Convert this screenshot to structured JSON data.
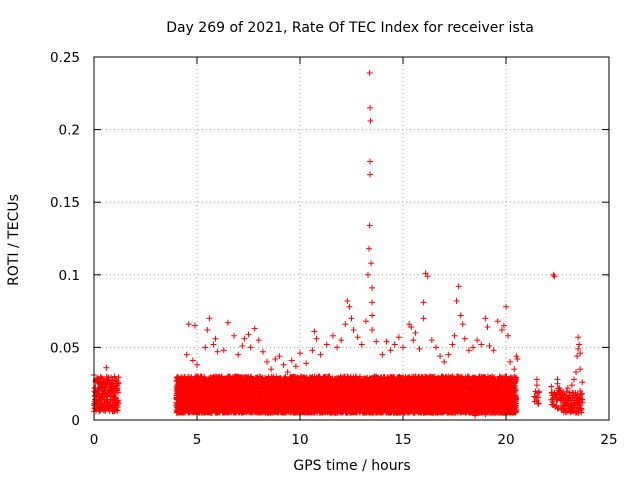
{
  "chart_data": {
    "type": "scatter",
    "title": "Day 269 of 2021, Rate Of TEC Index for receiver ista",
    "xlabel": "GPS time / hours",
    "ylabel": "ROTI / TECUs",
    "xlim": [
      0,
      25
    ],
    "ylim": [
      0,
      0.25
    ],
    "x_ticks": [
      0,
      5,
      10,
      15,
      20,
      25
    ],
    "x_tick_labels": [
      "0",
      "5",
      "10",
      "15",
      "20",
      "25"
    ],
    "y_ticks": [
      0,
      0.05,
      0.1,
      0.15,
      0.2,
      0.25
    ],
    "y_tick_labels": [
      "0",
      "0.05",
      "0.1",
      "0.15",
      "0.2",
      "0.25"
    ],
    "grid": true,
    "marker": "plus",
    "color": "#ff0000",
    "series": [
      {
        "name": "ROTI",
        "points": [
          [
            0.0,
            0.031
          ],
          [
            0.1,
            0.028
          ],
          [
            0.2,
            0.022
          ],
          [
            0.3,
            0.026
          ],
          [
            0.4,
            0.018
          ],
          [
            0.5,
            0.024
          ],
          [
            0.6,
            0.036
          ],
          [
            0.7,
            0.029
          ],
          [
            0.8,
            0.021
          ],
          [
            0.9,
            0.027
          ],
          [
            1.0,
            0.03
          ],
          [
            1.1,
            0.025
          ],
          [
            0.2,
            0.012
          ],
          [
            0.5,
            0.014
          ],
          [
            0.8,
            0.013
          ],
          [
            1.0,
            0.016
          ],
          [
            0.3,
            0.008
          ],
          [
            0.7,
            0.009
          ],
          [
            4.0,
            0.012
          ],
          [
            4.3,
            0.028
          ],
          [
            4.5,
            0.045
          ],
          [
            4.6,
            0.066
          ],
          [
            4.8,
            0.041
          ],
          [
            4.9,
            0.065
          ],
          [
            5.0,
            0.038
          ],
          [
            5.2,
            0.03
          ],
          [
            5.4,
            0.05
          ],
          [
            5.5,
            0.062
          ],
          [
            5.6,
            0.07
          ],
          [
            5.8,
            0.052
          ],
          [
            5.9,
            0.056
          ],
          [
            6.0,
            0.047
          ],
          [
            6.3,
            0.048
          ],
          [
            6.5,
            0.067
          ],
          [
            6.8,
            0.058
          ],
          [
            7.0,
            0.045
          ],
          [
            7.2,
            0.051
          ],
          [
            7.3,
            0.056
          ],
          [
            7.5,
            0.059
          ],
          [
            7.6,
            0.05
          ],
          [
            7.8,
            0.063
          ],
          [
            8.0,
            0.055
          ],
          [
            8.2,
            0.047
          ],
          [
            8.4,
            0.04
          ],
          [
            8.6,
            0.035
          ],
          [
            8.8,
            0.042
          ],
          [
            9.0,
            0.044
          ],
          [
            9.2,
            0.038
          ],
          [
            9.4,
            0.033
          ],
          [
            9.6,
            0.041
          ],
          [
            9.8,
            0.037
          ],
          [
            10.0,
            0.046
          ],
          [
            10.3,
            0.039
          ],
          [
            10.6,
            0.048
          ],
          [
            10.7,
            0.061
          ],
          [
            10.8,
            0.056
          ],
          [
            11.0,
            0.045
          ],
          [
            11.3,
            0.052
          ],
          [
            11.6,
            0.058
          ],
          [
            11.8,
            0.05
          ],
          [
            12.0,
            0.055
          ],
          [
            12.2,
            0.066
          ],
          [
            12.3,
            0.082
          ],
          [
            12.4,
            0.078
          ],
          [
            12.5,
            0.07
          ],
          [
            12.6,
            0.062
          ],
          [
            12.8,
            0.057
          ],
          [
            13.0,
            0.052
          ],
          [
            13.2,
            0.068
          ],
          [
            13.3,
            0.1
          ],
          [
            13.35,
            0.118
          ],
          [
            13.38,
            0.134
          ],
          [
            13.4,
            0.169
          ],
          [
            13.4,
            0.178
          ],
          [
            13.42,
            0.206
          ],
          [
            13.4,
            0.215
          ],
          [
            13.38,
            0.239
          ],
          [
            13.45,
            0.108
          ],
          [
            13.5,
            0.091
          ],
          [
            13.5,
            0.081
          ],
          [
            13.5,
            0.072
          ],
          [
            13.5,
            0.062
          ],
          [
            13.7,
            0.054
          ],
          [
            14.0,
            0.045
          ],
          [
            14.2,
            0.054
          ],
          [
            14.4,
            0.048
          ],
          [
            14.6,
            0.052
          ],
          [
            14.8,
            0.057
          ],
          [
            15.0,
            0.05
          ],
          [
            15.3,
            0.066
          ],
          [
            15.4,
            0.064
          ],
          [
            15.5,
            0.055
          ],
          [
            15.6,
            0.06
          ],
          [
            15.8,
            0.049
          ],
          [
            16.0,
            0.081
          ],
          [
            16.0,
            0.07
          ],
          [
            16.1,
            0.101
          ],
          [
            16.2,
            0.099
          ],
          [
            16.4,
            0.055
          ],
          [
            16.6,
            0.05
          ],
          [
            16.8,
            0.044
          ],
          [
            17.0,
            0.04
          ],
          [
            17.2,
            0.045
          ],
          [
            17.4,
            0.052
          ],
          [
            17.5,
            0.058
          ],
          [
            17.6,
            0.082
          ],
          [
            17.7,
            0.092
          ],
          [
            17.8,
            0.072
          ],
          [
            17.9,
            0.066
          ],
          [
            18.0,
            0.056
          ],
          [
            18.2,
            0.048
          ],
          [
            18.4,
            0.05
          ],
          [
            18.6,
            0.055
          ],
          [
            18.8,
            0.052
          ],
          [
            19.0,
            0.07
          ],
          [
            19.1,
            0.064
          ],
          [
            19.2,
            0.051
          ],
          [
            19.4,
            0.048
          ],
          [
            19.6,
            0.068
          ],
          [
            19.8,
            0.062
          ],
          [
            19.9,
            0.065
          ],
          [
            20.0,
            0.078
          ],
          [
            20.1,
            0.058
          ],
          [
            20.2,
            0.04
          ],
          [
            20.4,
            0.035
          ],
          [
            20.5,
            0.044
          ],
          [
            20.55,
            0.042
          ],
          [
            21.5,
            0.028
          ],
          [
            21.5,
            0.024
          ],
          [
            21.6,
            0.019
          ],
          [
            22.2,
            0.023
          ],
          [
            22.3,
            0.1
          ],
          [
            22.35,
            0.099
          ],
          [
            22.5,
            0.025
          ],
          [
            22.5,
            0.028
          ],
          [
            22.6,
            0.018
          ],
          [
            22.8,
            0.014
          ],
          [
            23.0,
            0.022
          ],
          [
            23.1,
            0.019
          ],
          [
            23.2,
            0.024
          ],
          [
            23.3,
            0.028
          ],
          [
            23.4,
            0.033
          ],
          [
            23.45,
            0.044
          ],
          [
            23.5,
            0.049
          ],
          [
            23.5,
            0.057
          ],
          [
            23.55,
            0.052
          ],
          [
            23.6,
            0.046
          ],
          [
            23.6,
            0.035
          ],
          [
            23.6,
            0.02
          ],
          [
            23.7,
            0.026
          ],
          [
            20.0,
            0.006
          ],
          [
            19.0,
            0.004
          ],
          [
            18.5,
            0.003
          ],
          [
            16.0,
            0.005
          ],
          [
            14.0,
            0.006
          ],
          [
            12.0,
            0.007
          ],
          [
            10.0,
            0.005
          ],
          [
            8.0,
            0.006
          ],
          [
            6.0,
            0.005
          ],
          [
            4.2,
            0.007
          ],
          [
            23.0,
            0.006
          ],
          [
            22.5,
            0.008
          ]
        ],
        "bands": [
          {
            "x_range": [
              0.0,
              1.2
            ],
            "y_range": [
              0.006,
              0.03
            ],
            "density": 0.012
          },
          {
            "x_range": [
              4.0,
              20.5
            ],
            "y_range": [
              0.005,
              0.03
            ],
            "density": 0.004
          },
          {
            "x_range": [
              21.4,
              21.65
            ],
            "y_range": [
              0.01,
              0.022
            ],
            "density": 0.05
          },
          {
            "x_range": [
              22.2,
              22.7
            ],
            "y_range": [
              0.008,
              0.022
            ],
            "density": 0.03
          },
          {
            "x_range": [
              22.7,
              23.7
            ],
            "y_range": [
              0.005,
              0.02
            ],
            "density": 0.02
          }
        ]
      }
    ]
  }
}
